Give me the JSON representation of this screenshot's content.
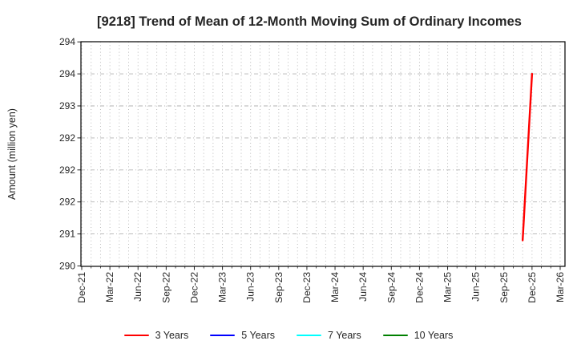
{
  "page": {
    "background": "#ffffff"
  },
  "chart_data": {
    "type": "line",
    "title": "[9218]  Trend of Mean of 12-Month Moving Sum of Ordinary Incomes",
    "ylabel": "Amount (million yen)",
    "grid": true,
    "legend_position": "bottom-center",
    "x_axis": {
      "tick_labels": [
        "Dec-21",
        "Mar-22",
        "Jun-22",
        "Sep-22",
        "Dec-22",
        "Mar-23",
        "Jun-23",
        "Sep-23",
        "Dec-23",
        "Mar-24",
        "Jun-24",
        "Sep-24",
        "Dec-24",
        "Mar-25",
        "Jun-25",
        "Sep-25",
        "Dec-25",
        "Mar-26"
      ],
      "months_per_labeled_tick": 3,
      "total_months": 51,
      "minor_gridlines": "monthly"
    },
    "y_axis": {
      "min": 290.5,
      "max": 294.0,
      "ticks": [
        {
          "value": 290.5,
          "label": "290"
        },
        {
          "value": 291.0,
          "label": "291"
        },
        {
          "value": 291.5,
          "label": "292"
        },
        {
          "value": 292.0,
          "label": "292"
        },
        {
          "value": 292.5,
          "label": "292"
        },
        {
          "value": 293.0,
          "label": "293"
        },
        {
          "value": 293.5,
          "label": "294"
        },
        {
          "value": 294.0,
          "label": "294"
        }
      ]
    },
    "series": [
      {
        "name": "3 Years",
        "color": "#ff0000",
        "points": [
          {
            "month": "Nov-25",
            "month_index": 47,
            "value": 290.9
          },
          {
            "month": "Dec-25",
            "month_index": 48,
            "value": 293.5
          }
        ]
      },
      {
        "name": "5 Years",
        "color": "#0000ff",
        "points": []
      },
      {
        "name": "7 Years",
        "color": "#00ffff",
        "points": []
      },
      {
        "name": "10 Years",
        "color": "#008000",
        "points": []
      }
    ],
    "colors": {
      "grid": "#b3b3b3",
      "spine": "#000000",
      "text": "#262626"
    }
  }
}
